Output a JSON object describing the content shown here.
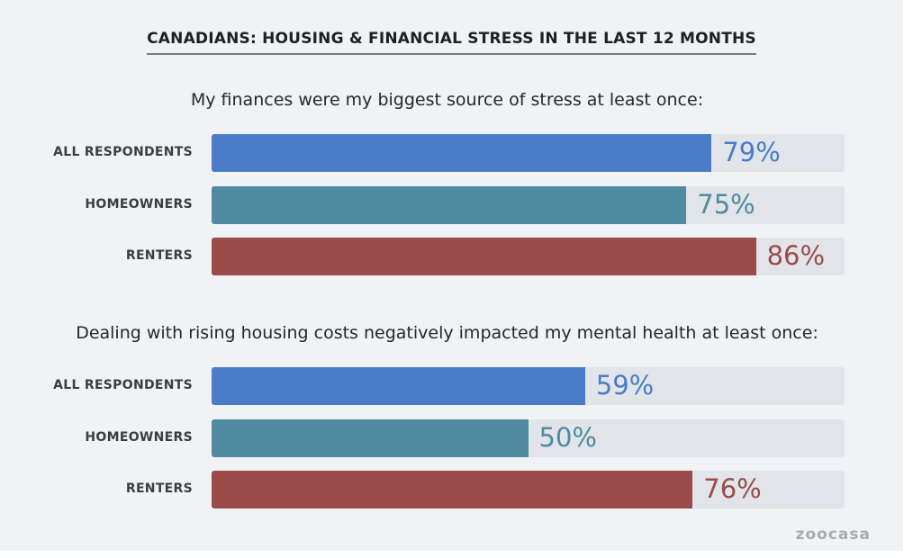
{
  "chart_data": [
    {
      "type": "bar",
      "orientation": "horizontal",
      "title": "My finances were my biggest source of stress at least once:",
      "categories": [
        "ALL RESPONDENTS",
        "HOMEOWNERS",
        "RENTERS"
      ],
      "values": [
        79,
        75,
        86
      ],
      "value_labels": [
        "79%",
        "75%",
        "86%"
      ],
      "colors": [
        "#4a7cc7",
        "#4f8aa0",
        "#9b4a4a"
      ],
      "xlim": [
        0,
        100
      ],
      "unit": "%"
    },
    {
      "type": "bar",
      "orientation": "horizontal",
      "title": "Dealing with rising housing costs negatively impacted my mental health at least once:",
      "categories": [
        "ALL RESPONDENTS",
        "HOMEOWNERS",
        "RENTERS"
      ],
      "values": [
        59,
        50,
        76
      ],
      "value_labels": [
        "59%",
        "50%",
        "76%"
      ],
      "colors": [
        "#4a7cc7",
        "#4f8aa0",
        "#9b4a4a"
      ],
      "xlim": [
        0,
        100
      ],
      "unit": "%"
    }
  ],
  "header": {
    "title": "CANADIANS: HOUSING & FINANCIAL STRESS IN THE LAST 12 MONTHS"
  },
  "footer": {
    "brand": "zoocasa"
  },
  "colors": {
    "background": "#f1f2f4",
    "track": "#e1e5ea"
  }
}
